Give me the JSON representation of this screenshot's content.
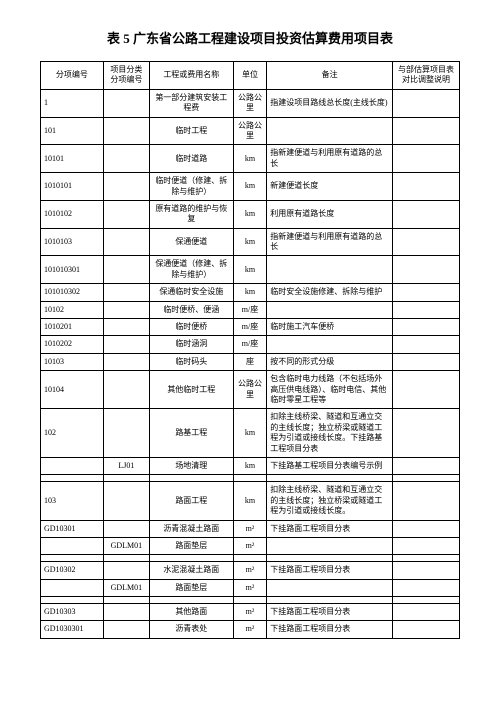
{
  "title": "表 5 广东省公路工程建设项目投资估算费用项目表",
  "headers": {
    "col1": "分项编号",
    "col2": "项目分类\n分项编号",
    "col3": "工程或费用名称",
    "col4": "单位",
    "col5": "备注",
    "col6": "与部估算项目表对比调整说明"
  },
  "rows": [
    {
      "c1": "1",
      "c2": "",
      "c3": "第一部分建筑安装工程费",
      "c4": "公路公里",
      "c5": "指建设项目路线总长度(主线长度)",
      "c6": ""
    },
    {
      "c1": "101",
      "c2": "",
      "c3": "临时工程",
      "c4": "公路公里",
      "c5": "",
      "c6": ""
    },
    {
      "c1": "10101",
      "c2": "",
      "c3": "临时道路",
      "c4": "km",
      "c5": "指新建便道与利用原有道路的总长",
      "c6": ""
    },
    {
      "c1": "1010101",
      "c2": "",
      "c3": "临时便道（修建、拆除与维护）",
      "c4": "km",
      "c5": "新建便道长度",
      "c6": ""
    },
    {
      "c1": "1010102",
      "c2": "",
      "c3": "原有道路的维护与恢复",
      "c4": "km",
      "c5": "利用原有道路长度",
      "c6": ""
    },
    {
      "c1": "1010103",
      "c2": "",
      "c3": "保通便道",
      "c4": "km",
      "c5": "指新建便道与利用原有道路的总长",
      "c6": ""
    },
    {
      "c1": "101010301",
      "c2": "",
      "c3": "保通便道（修建、拆除与维护）",
      "c4": "km",
      "c5": "",
      "c6": ""
    },
    {
      "c1": "101010302",
      "c2": "",
      "c3": "保通临时安全设施",
      "c4": "km",
      "c5": "临时安全设施修建、拆除与维护",
      "c6": ""
    },
    {
      "c1": "10102",
      "c2": "",
      "c3": "临时便桥、便涵",
      "c4": "m/座",
      "c5": "",
      "c6": ""
    },
    {
      "c1": "1010201",
      "c2": "",
      "c3": "临时便桥",
      "c4": "m/座",
      "c5": "临时施工汽车便桥",
      "c6": ""
    },
    {
      "c1": "1010202",
      "c2": "",
      "c3": "临时涵洞",
      "c4": "m/座",
      "c5": "",
      "c6": ""
    },
    {
      "c1": "10103",
      "c2": "",
      "c3": "临时码头",
      "c4": "座",
      "c5": "按不同的形式分级",
      "c6": ""
    },
    {
      "c1": "10104",
      "c2": "",
      "c3": "其他临时工程",
      "c4": "公路公里",
      "c5": "包含临时电力线路（不包括场外高压供电线路）、临时电信、其他临时零星工程等",
      "c6": ""
    },
    {
      "c1": "102",
      "c2": "",
      "c3": "路基工程",
      "c4": "km",
      "c5": "扣除主线桥梁、隧道和互通立交的主线长度；独立桥梁或隧道工程为引道或接线长度。下挂路基工程项目分表",
      "c6": ""
    },
    {
      "c1": "",
      "c2": "LJ01",
      "c3": "场地清理",
      "c4": "km",
      "c5": "下挂路基工程项目分表编号示例",
      "c6": ""
    },
    {
      "c1": "",
      "c2": "",
      "c3": "",
      "c4": "",
      "c5": "",
      "c6": ""
    },
    {
      "c1": "103",
      "c2": "",
      "c3": "路面工程",
      "c4": "km",
      "c5": "扣除主线桥梁、隧道和互通立交的主线长度；独立桥梁或隧道工程为引道或接线长度。",
      "c6": ""
    },
    {
      "c1": "GD10301",
      "c2": "",
      "c3": "沥青混凝土路面",
      "c4": "m²",
      "c5": "下挂路面工程项目分表",
      "c6": ""
    },
    {
      "c1": "",
      "c2": "GDLM01",
      "c3": "路面垫层",
      "c4": "m²",
      "c5": "",
      "c6": ""
    },
    {
      "c1": "",
      "c2": "",
      "c3": "",
      "c4": "",
      "c5": "",
      "c6": ""
    },
    {
      "c1": "GD10302",
      "c2": "",
      "c3": "水泥混凝土路面",
      "c4": "m²",
      "c5": "下挂路面工程项目分表",
      "c6": ""
    },
    {
      "c1": "",
      "c2": "GDLM01",
      "c3": "路面垫层",
      "c4": "m²",
      "c5": "",
      "c6": ""
    },
    {
      "c1": "",
      "c2": "",
      "c3": "",
      "c4": "",
      "c5": "",
      "c6": ""
    },
    {
      "c1": "GD10303",
      "c2": "",
      "c3": "其他路面",
      "c4": "m²",
      "c5": "下挂路面工程项目分表",
      "c6": ""
    },
    {
      "c1": "GD1030301",
      "c2": "",
      "c3": "沥青表处",
      "c4": "m²",
      "c5": "下挂路面工程项目分表",
      "c6": ""
    }
  ]
}
